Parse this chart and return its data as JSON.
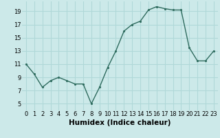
{
  "x": [
    0,
    1,
    2,
    3,
    4,
    5,
    6,
    7,
    8,
    9,
    10,
    11,
    12,
    13,
    14,
    15,
    16,
    17,
    18,
    19,
    20,
    21,
    22,
    23
  ],
  "y": [
    11,
    9.5,
    7.5,
    8.5,
    9,
    8.5,
    8,
    8,
    5,
    7.5,
    10.5,
    13,
    16,
    17,
    17.5,
    19.2,
    19.7,
    19.4,
    19.2,
    19.2,
    13.5,
    11.5,
    11.5,
    13
  ],
  "line_color": "#2e6b5e",
  "marker": ".",
  "bg_color": "#cce9e9",
  "grid_color": "#b0d8d8",
  "xlabel": "Humidex (Indice chaleur)",
  "xlim": [
    -0.5,
    23.5
  ],
  "ylim": [
    4,
    20.5
  ],
  "yticks": [
    5,
    7,
    9,
    11,
    13,
    15,
    17,
    19
  ],
  "xticks": [
    0,
    1,
    2,
    3,
    4,
    5,
    6,
    7,
    8,
    9,
    10,
    11,
    12,
    13,
    14,
    15,
    16,
    17,
    18,
    19,
    20,
    21,
    22,
    23
  ],
  "label_fontsize": 7.5,
  "tick_fontsize": 6
}
